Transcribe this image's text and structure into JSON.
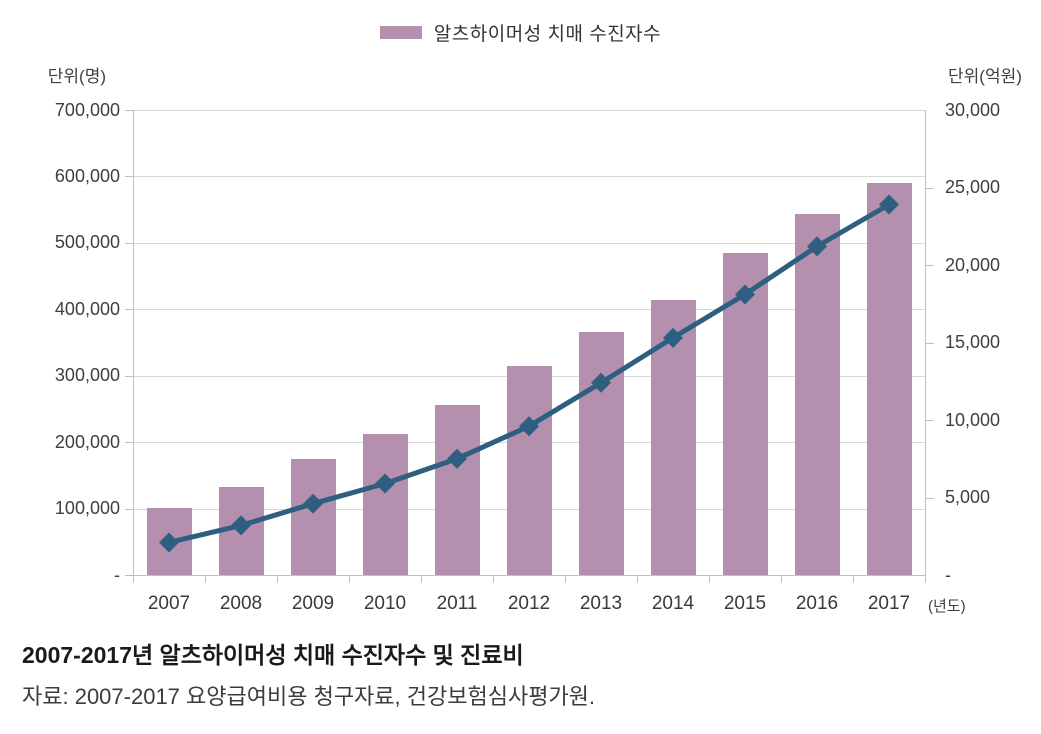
{
  "legend": {
    "label": "알츠하이머성 치매 수진자수"
  },
  "caption": {
    "title": "2007-2017년 알츠하이머성 치매 수진자수 및 진료비",
    "source": "자료: 2007-2017 요양급여비용 청구자료, 건강보험심사평가원."
  },
  "colors": {
    "bar": "#b590ae",
    "line": "#2e5f80",
    "grid": "#d7d7d7",
    "axis": "#bfbfbf",
    "text": "#3f3f3f"
  },
  "chart_data": {
    "type": "bar",
    "subtype": "bar+line dual-axis",
    "title": "2007-2017년 알츠하이머성 치매 수진자수 및 진료비",
    "categories": [
      "2007",
      "2008",
      "2009",
      "2010",
      "2011",
      "2012",
      "2013",
      "2014",
      "2015",
      "2016",
      "2017"
    ],
    "series": [
      {
        "name": "알츠하이머성 치매 수진자수",
        "type": "bar",
        "axis": "left",
        "color": "#b590ae",
        "values": [
          101000,
          133000,
          174000,
          213000,
          256000,
          314000,
          366000,
          414000,
          484000,
          543000,
          590000
        ]
      },
      {
        "name": "진료비",
        "type": "line",
        "axis": "right",
        "color": "#2e5f80",
        "marker": "diamond",
        "values": [
          2100,
          3200,
          4600,
          5900,
          7500,
          9600,
          12400,
          15300,
          18100,
          21200,
          23900
        ]
      }
    ],
    "left_axis": {
      "label": "단위(명)",
      "min": 0,
      "max": 700000,
      "step": 100000,
      "zero_label": "-"
    },
    "right_axis": {
      "label": "단위(억원)",
      "min": 0,
      "max": 30000,
      "step": 5000,
      "zero_label": "-"
    },
    "x_axis_unit": "(년도)",
    "grid": true,
    "legend_position": "top-center"
  }
}
